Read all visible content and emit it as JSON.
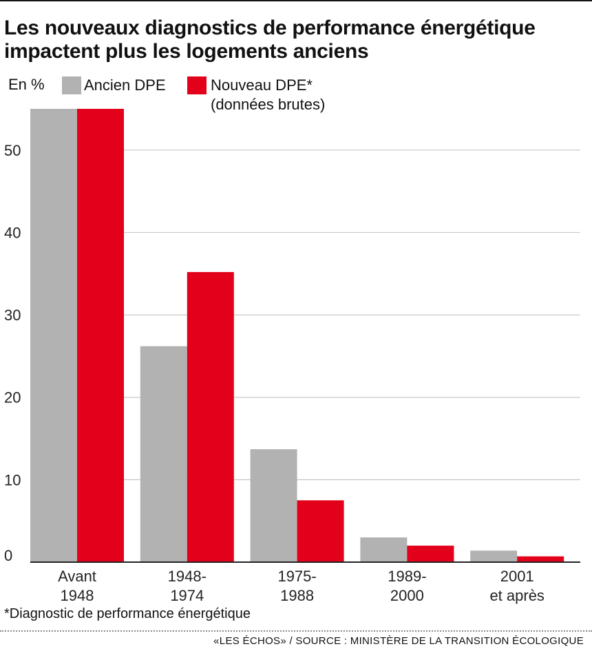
{
  "header": {
    "title": "Les nouveaux diagnostics de performance énergétique impactent plus les logements anciens"
  },
  "legend": {
    "unit": "En %",
    "ancien_label": "Ancien DPE",
    "nouveau_label_line1": "Nouveau DPE*",
    "nouveau_label_line2": "(données brutes)"
  },
  "colors": {
    "ancien": "#b3b2b2",
    "nouveau": "#e2001a",
    "grid": "#c8c8c8",
    "axis": "#222222"
  },
  "chart_data": {
    "type": "bar",
    "title": "",
    "xlabel": "",
    "ylabel": "En %",
    "ylim": [
      0,
      55
    ],
    "yticks": [
      "0",
      "10",
      "20",
      "30",
      "40",
      "50"
    ],
    "categories": [
      [
        "Avant",
        "1948"
      ],
      [
        "1948-",
        "1974"
      ],
      [
        "1975-",
        "1988"
      ],
      [
        "1989-",
        "2000"
      ],
      [
        "2001",
        "et après"
      ]
    ],
    "series": [
      {
        "name": "Ancien DPE",
        "values": [
          55,
          26.2,
          13.7,
          3.0,
          1.4
        ]
      },
      {
        "name": "Nouveau DPE* (données brutes)",
        "values": [
          55,
          35.2,
          7.5,
          2.0,
          0.7
        ]
      }
    ],
    "grid": true,
    "legend_position": "top-left"
  },
  "footer": {
    "footnote": "*Diagnostic de performance énergétique",
    "source": "«LES ÉCHOS» / SOURCE : MINISTÈRE DE LA TRANSITION ÉCOLOGIQUE"
  }
}
